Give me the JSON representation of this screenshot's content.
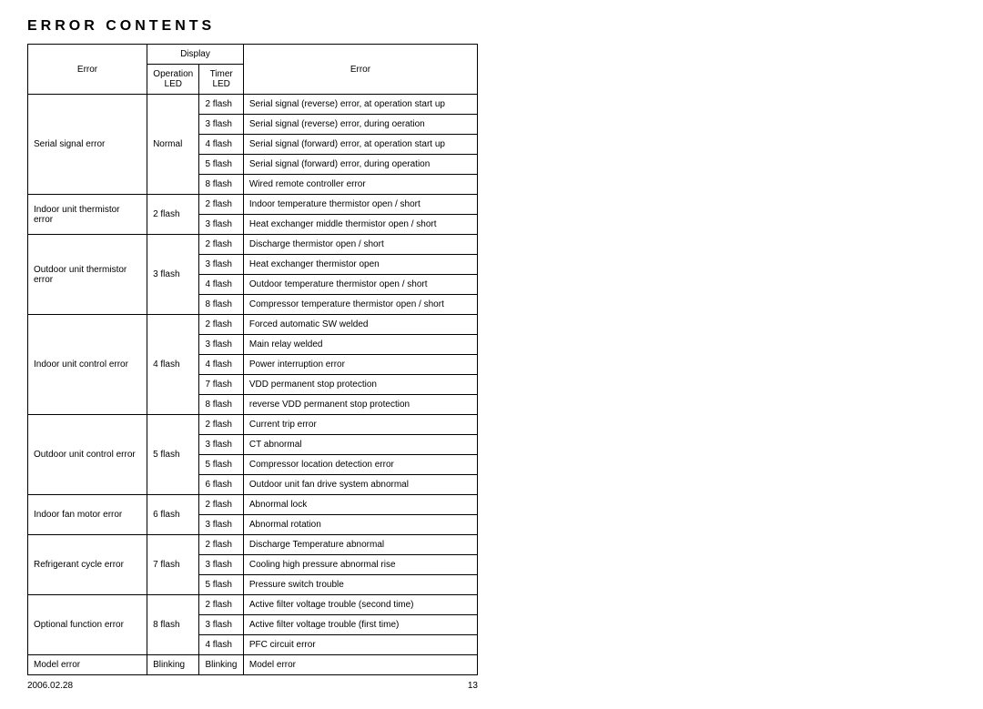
{
  "title": "ERROR CONTENTS",
  "headers": {
    "error": "Error",
    "display": "Display",
    "operation_led": "Operation LED",
    "timer_led": "Timer LED",
    "error_desc": "Error"
  },
  "groups": [
    {
      "category": "Serial signal error",
      "operation": "Normal",
      "rows": [
        {
          "timer": "2 flash",
          "desc": "Serial signal (reverse) error, at operation start up"
        },
        {
          "timer": "3 flash",
          "desc": "Serial signal (reverse) error, during oeration"
        },
        {
          "timer": "4 flash",
          "desc": "Serial signal (forward) error, at operation start up"
        },
        {
          "timer": "5 flash",
          "desc": "Serial signal (forward) error, during operation"
        },
        {
          "timer": "8 flash",
          "desc": "Wired remote controller error"
        }
      ]
    },
    {
      "category": "Indoor unit thermistor error",
      "operation": "2 flash",
      "rows": [
        {
          "timer": "2 flash",
          "desc": "Indoor temperature thermistor open / short"
        },
        {
          "timer": "3 flash",
          "desc": "Heat exchanger middle thermistor open / short"
        }
      ]
    },
    {
      "category": "Outdoor unit thermistor error",
      "operation": "3 flash",
      "rows": [
        {
          "timer": "2 flash",
          "desc": "Discharge thermistor open / short"
        },
        {
          "timer": "3 flash",
          "desc": "Heat exchanger thermistor open"
        },
        {
          "timer": "4 flash",
          "desc": "Outdoor temperature thermistor open / short"
        },
        {
          "timer": "8 flash",
          "desc": "Compressor temperature thermistor open / short"
        }
      ]
    },
    {
      "category": "Indoor unit control error",
      "operation": "4 flash",
      "rows": [
        {
          "timer": "2 flash",
          "desc": "Forced automatic SW welded"
        },
        {
          "timer": "3 flash",
          "desc": "Main relay welded"
        },
        {
          "timer": "4 flash",
          "desc": "Power interruption error"
        },
        {
          "timer": "7 flash",
          "desc": "VDD permanent stop protection"
        },
        {
          "timer": "8 flash",
          "desc": "reverse VDD permanent stop protection"
        }
      ]
    },
    {
      "category": "Outdoor unit control error",
      "operation": "5 flash",
      "rows": [
        {
          "timer": "2 flash",
          "desc": "Current trip error"
        },
        {
          "timer": "3 flash",
          "desc": "CT abnormal"
        },
        {
          "timer": "5 flash",
          "desc": "Compressor location detection error"
        },
        {
          "timer": "6 flash",
          "desc": "Outdoor unit fan drive system abnormal"
        }
      ]
    },
    {
      "category": "Indoor fan motor error",
      "operation": "6 flash",
      "rows": [
        {
          "timer": "2 flash",
          "desc": "Abnormal lock"
        },
        {
          "timer": "3 flash",
          "desc": "Abnormal rotation"
        }
      ]
    },
    {
      "category": "Refrigerant cycle error",
      "operation": "7 flash",
      "rows": [
        {
          "timer": "2 flash",
          "desc": "Discharge Temperature abnormal"
        },
        {
          "timer": "3 flash",
          "desc": "Cooling high pressure abnormal rise"
        },
        {
          "timer": "5 flash",
          "desc": "Pressure switch trouble"
        }
      ]
    },
    {
      "category": "Optional function error",
      "operation": "8 flash",
      "rows": [
        {
          "timer": "2 flash",
          "desc": "Active filter voltage trouble (second time)"
        },
        {
          "timer": "3 flash",
          "desc": "Active filter voltage trouble (first time)"
        },
        {
          "timer": "4 flash",
          "desc": "PFC circuit error"
        }
      ]
    },
    {
      "category": "Model error",
      "operation": "Blinking",
      "rows": [
        {
          "timer": "Blinking",
          "desc": "Model error"
        }
      ]
    }
  ],
  "footer": {
    "date": "2006.02.28",
    "page": "13"
  }
}
